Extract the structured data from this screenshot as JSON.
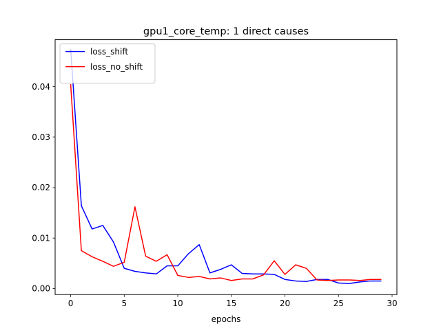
{
  "chart_data": {
    "type": "line",
    "title": "gpu1_core_temp: 1 direct causes",
    "xlabel": "epochs",
    "ylabel": "",
    "xlim": [
      -1.45,
      30.45
    ],
    "ylim": [
      -0.0012,
      0.0493
    ],
    "x_ticks": [
      0,
      5,
      10,
      15,
      20,
      25,
      30
    ],
    "y_ticks": [
      0.0,
      0.01,
      0.02,
      0.03,
      0.04
    ],
    "y_tick_labels": [
      "0.00",
      "0.01",
      "0.02",
      "0.03",
      "0.04"
    ],
    "legend_position": "top-left",
    "grid": false,
    "x": [
      0,
      1,
      2,
      3,
      4,
      5,
      6,
      7,
      8,
      9,
      10,
      11,
      12,
      13,
      14,
      15,
      16,
      17,
      18,
      19,
      20,
      21,
      22,
      23,
      24,
      25,
      26,
      27,
      28,
      29
    ],
    "series": [
      {
        "name": "loss_shift",
        "color": "#0000ff",
        "values": [
          0.0475,
          0.0164,
          0.0118,
          0.0125,
          0.0092,
          0.004,
          0.0034,
          0.0031,
          0.0029,
          0.0045,
          0.0045,
          0.0069,
          0.0087,
          0.0031,
          0.0038,
          0.0047,
          0.003,
          0.0029,
          0.0029,
          0.0028,
          0.0018,
          0.0015,
          0.0014,
          0.0018,
          0.0018,
          0.0011,
          0.001,
          0.0013,
          0.0015,
          0.0015
        ]
      },
      {
        "name": "loss_no_shift",
        "color": "#ff0000",
        "values": [
          0.0405,
          0.0075,
          0.0063,
          0.0054,
          0.0044,
          0.0052,
          0.0162,
          0.0064,
          0.0054,
          0.0067,
          0.0026,
          0.0022,
          0.0024,
          0.0019,
          0.0021,
          0.0016,
          0.0019,
          0.0019,
          0.0027,
          0.0055,
          0.0028,
          0.0047,
          0.004,
          0.0017,
          0.0016,
          0.0017,
          0.0017,
          0.0016,
          0.0018,
          0.0018
        ]
      }
    ]
  }
}
